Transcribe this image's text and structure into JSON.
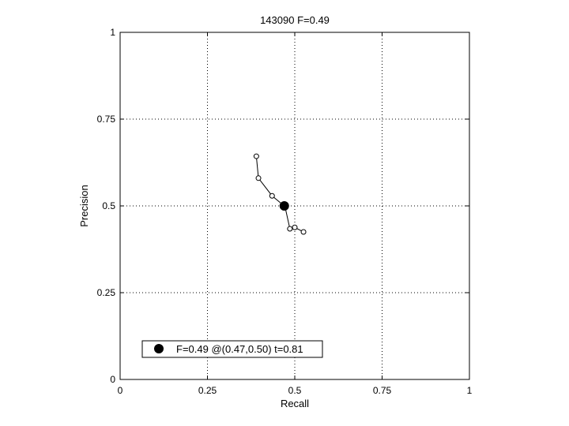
{
  "chart_data": {
    "type": "scatter",
    "title": "143090 F=0.49",
    "xlabel": "Recall",
    "ylabel": "Precision",
    "xlim": [
      0,
      1
    ],
    "ylim": [
      0,
      1
    ],
    "xticks": [
      0,
      0.25,
      0.5,
      0.75,
      1
    ],
    "yticks": [
      0,
      0.25,
      0.5,
      0.75,
      1
    ],
    "xtick_labels": [
      "0",
      "0.25",
      "0.5",
      "0.75",
      "1"
    ],
    "ytick_labels": [
      "0",
      "0.25",
      "0.5",
      "0.75",
      "1"
    ],
    "grid": true,
    "legend_position": "bottom-left",
    "series": [
      {
        "line_color": "#000000",
        "marker": "open-circle",
        "points": [
          {
            "x": 0.39,
            "y": 0.643
          },
          {
            "x": 0.396,
            "y": 0.58
          },
          {
            "x": 0.435,
            "y": 0.529
          },
          {
            "x": 0.472,
            "y": 0.498
          },
          {
            "x": 0.486,
            "y": 0.434
          },
          {
            "x": 0.5,
            "y": 0.438
          },
          {
            "x": 0.525,
            "y": 0.425
          }
        ]
      }
    ],
    "highlight_point": {
      "x": 0.47,
      "y": 0.5
    },
    "legend_label": "F=0.49 @(0.47,0.50) t=0.81"
  }
}
